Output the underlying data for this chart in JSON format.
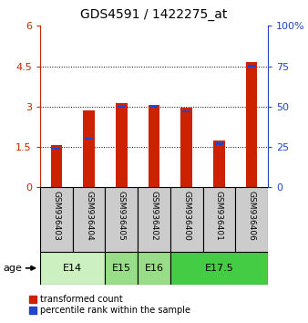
{
  "title": "GDS4591 / 1422275_at",
  "samples": [
    "GSM936403",
    "GSM936404",
    "GSM936405",
    "GSM936402",
    "GSM936400",
    "GSM936401",
    "GSM936406"
  ],
  "red_values": [
    1.57,
    2.87,
    3.13,
    3.07,
    2.97,
    1.75,
    4.65
  ],
  "blue_pct": [
    24,
    30,
    50,
    50,
    47,
    27,
    75
  ],
  "ylim_left": [
    0,
    6
  ],
  "ylim_right": [
    0,
    100
  ],
  "yticks_left": [
    0,
    1.5,
    3.0,
    4.5,
    6.0
  ],
  "yticks_right": [
    0,
    25,
    50,
    75,
    100
  ],
  "ytick_labels_left": [
    "0",
    "1.5",
    "3",
    "4.5",
    "6"
  ],
  "ytick_labels_right": [
    "0",
    "25",
    "50",
    "75",
    "100%"
  ],
  "age_groups": [
    {
      "label": "E14",
      "start": 0,
      "end": 2,
      "color": "#ccf0c0"
    },
    {
      "label": "E15",
      "start": 2,
      "end": 3,
      "color": "#99dd88"
    },
    {
      "label": "E16",
      "start": 3,
      "end": 4,
      "color": "#99dd88"
    },
    {
      "label": "E17.5",
      "start": 4,
      "end": 7,
      "color": "#44cc44"
    }
  ],
  "age_label": "age",
  "bar_width": 0.35,
  "red_color": "#cc2200",
  "blue_color": "#2244cc",
  "bar_bg_color": "#cccccc",
  "plot_bg_color": "#ffffff",
  "legend_items": [
    "transformed count",
    "percentile rank within the sample"
  ],
  "legend_colors": [
    "#cc2200",
    "#2244cc"
  ],
  "grid_dotted_values": [
    1.5,
    3.0,
    4.5
  ]
}
